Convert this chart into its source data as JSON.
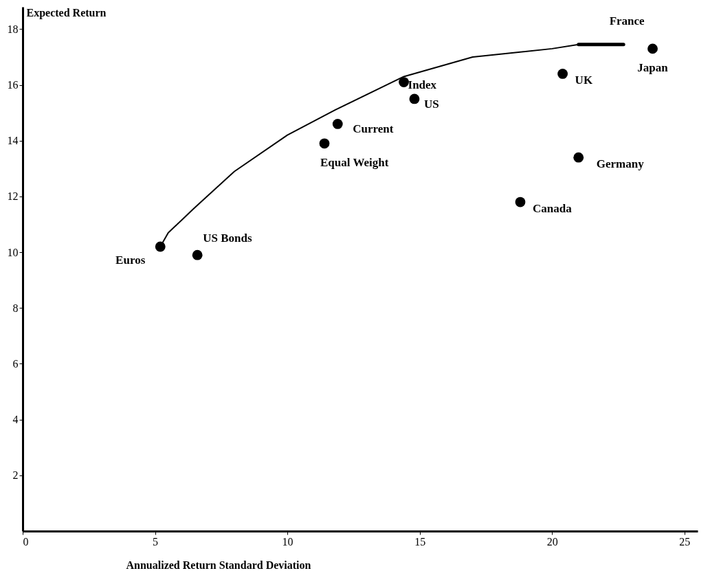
{
  "chart_data": {
    "type": "scatter",
    "xlabel": "Annualized Return Standard Deviation",
    "ylabel": "Expected Return",
    "xlim": [
      0,
      25.5
    ],
    "xticks": [
      0,
      5,
      10,
      15,
      20,
      25
    ],
    "ylim": [
      0,
      18.8
    ],
    "yticks": [
      2,
      4,
      6,
      8,
      10,
      12,
      14,
      16,
      18
    ],
    "grid": false,
    "marker": "circle",
    "series": [
      {
        "type": "line",
        "marker": "none",
        "color": "#000000",
        "x": [
          5.2,
          5.5,
          6.5,
          8.0,
          10.0,
          11.8,
          14.4,
          17.0,
          20.0,
          21.0
        ],
        "values": [
          10.2,
          10.7,
          11.6,
          12.9,
          14.2,
          15.1,
          16.3,
          17.0,
          17.3,
          17.45
        ]
      },
      {
        "type": "line",
        "marker": "none",
        "color": "#000000",
        "x": [
          21.0,
          22.7
        ],
        "values": [
          17.45,
          17.45
        ],
        "name": "France"
      },
      {
        "name": "Euros",
        "color": "#000000",
        "x": [
          5.2
        ],
        "values": [
          10.2
        ]
      },
      {
        "name": "US Bonds",
        "color": "#000000",
        "x": [
          6.6
        ],
        "values": [
          9.9
        ]
      },
      {
        "name": "Equal Weight",
        "color": "#000000",
        "x": [
          11.4
        ],
        "values": [
          13.9
        ]
      },
      {
        "name": "Current",
        "color": "#000000",
        "x": [
          11.9
        ],
        "values": [
          14.6
        ]
      },
      {
        "name": "Index",
        "color": "#000000",
        "x": [
          14.4
        ],
        "values": [
          16.1
        ]
      },
      {
        "name": "US",
        "color": "#000000",
        "x": [
          14.8
        ],
        "values": [
          15.5
        ]
      },
      {
        "name": "UK",
        "color": "#000000",
        "x": [
          20.4
        ],
        "values": [
          16.4
        ]
      },
      {
        "name": "Japan",
        "color": "#000000",
        "x": [
          23.8
        ],
        "values": [
          17.3
        ]
      },
      {
        "name": "Germany",
        "color": "#000000",
        "x": [
          21.0
        ],
        "values": [
          13.4
        ]
      },
      {
        "name": "Canada",
        "color": "#000000",
        "x": [
          18.8
        ],
        "values": [
          11.8
        ]
      }
    ]
  }
}
